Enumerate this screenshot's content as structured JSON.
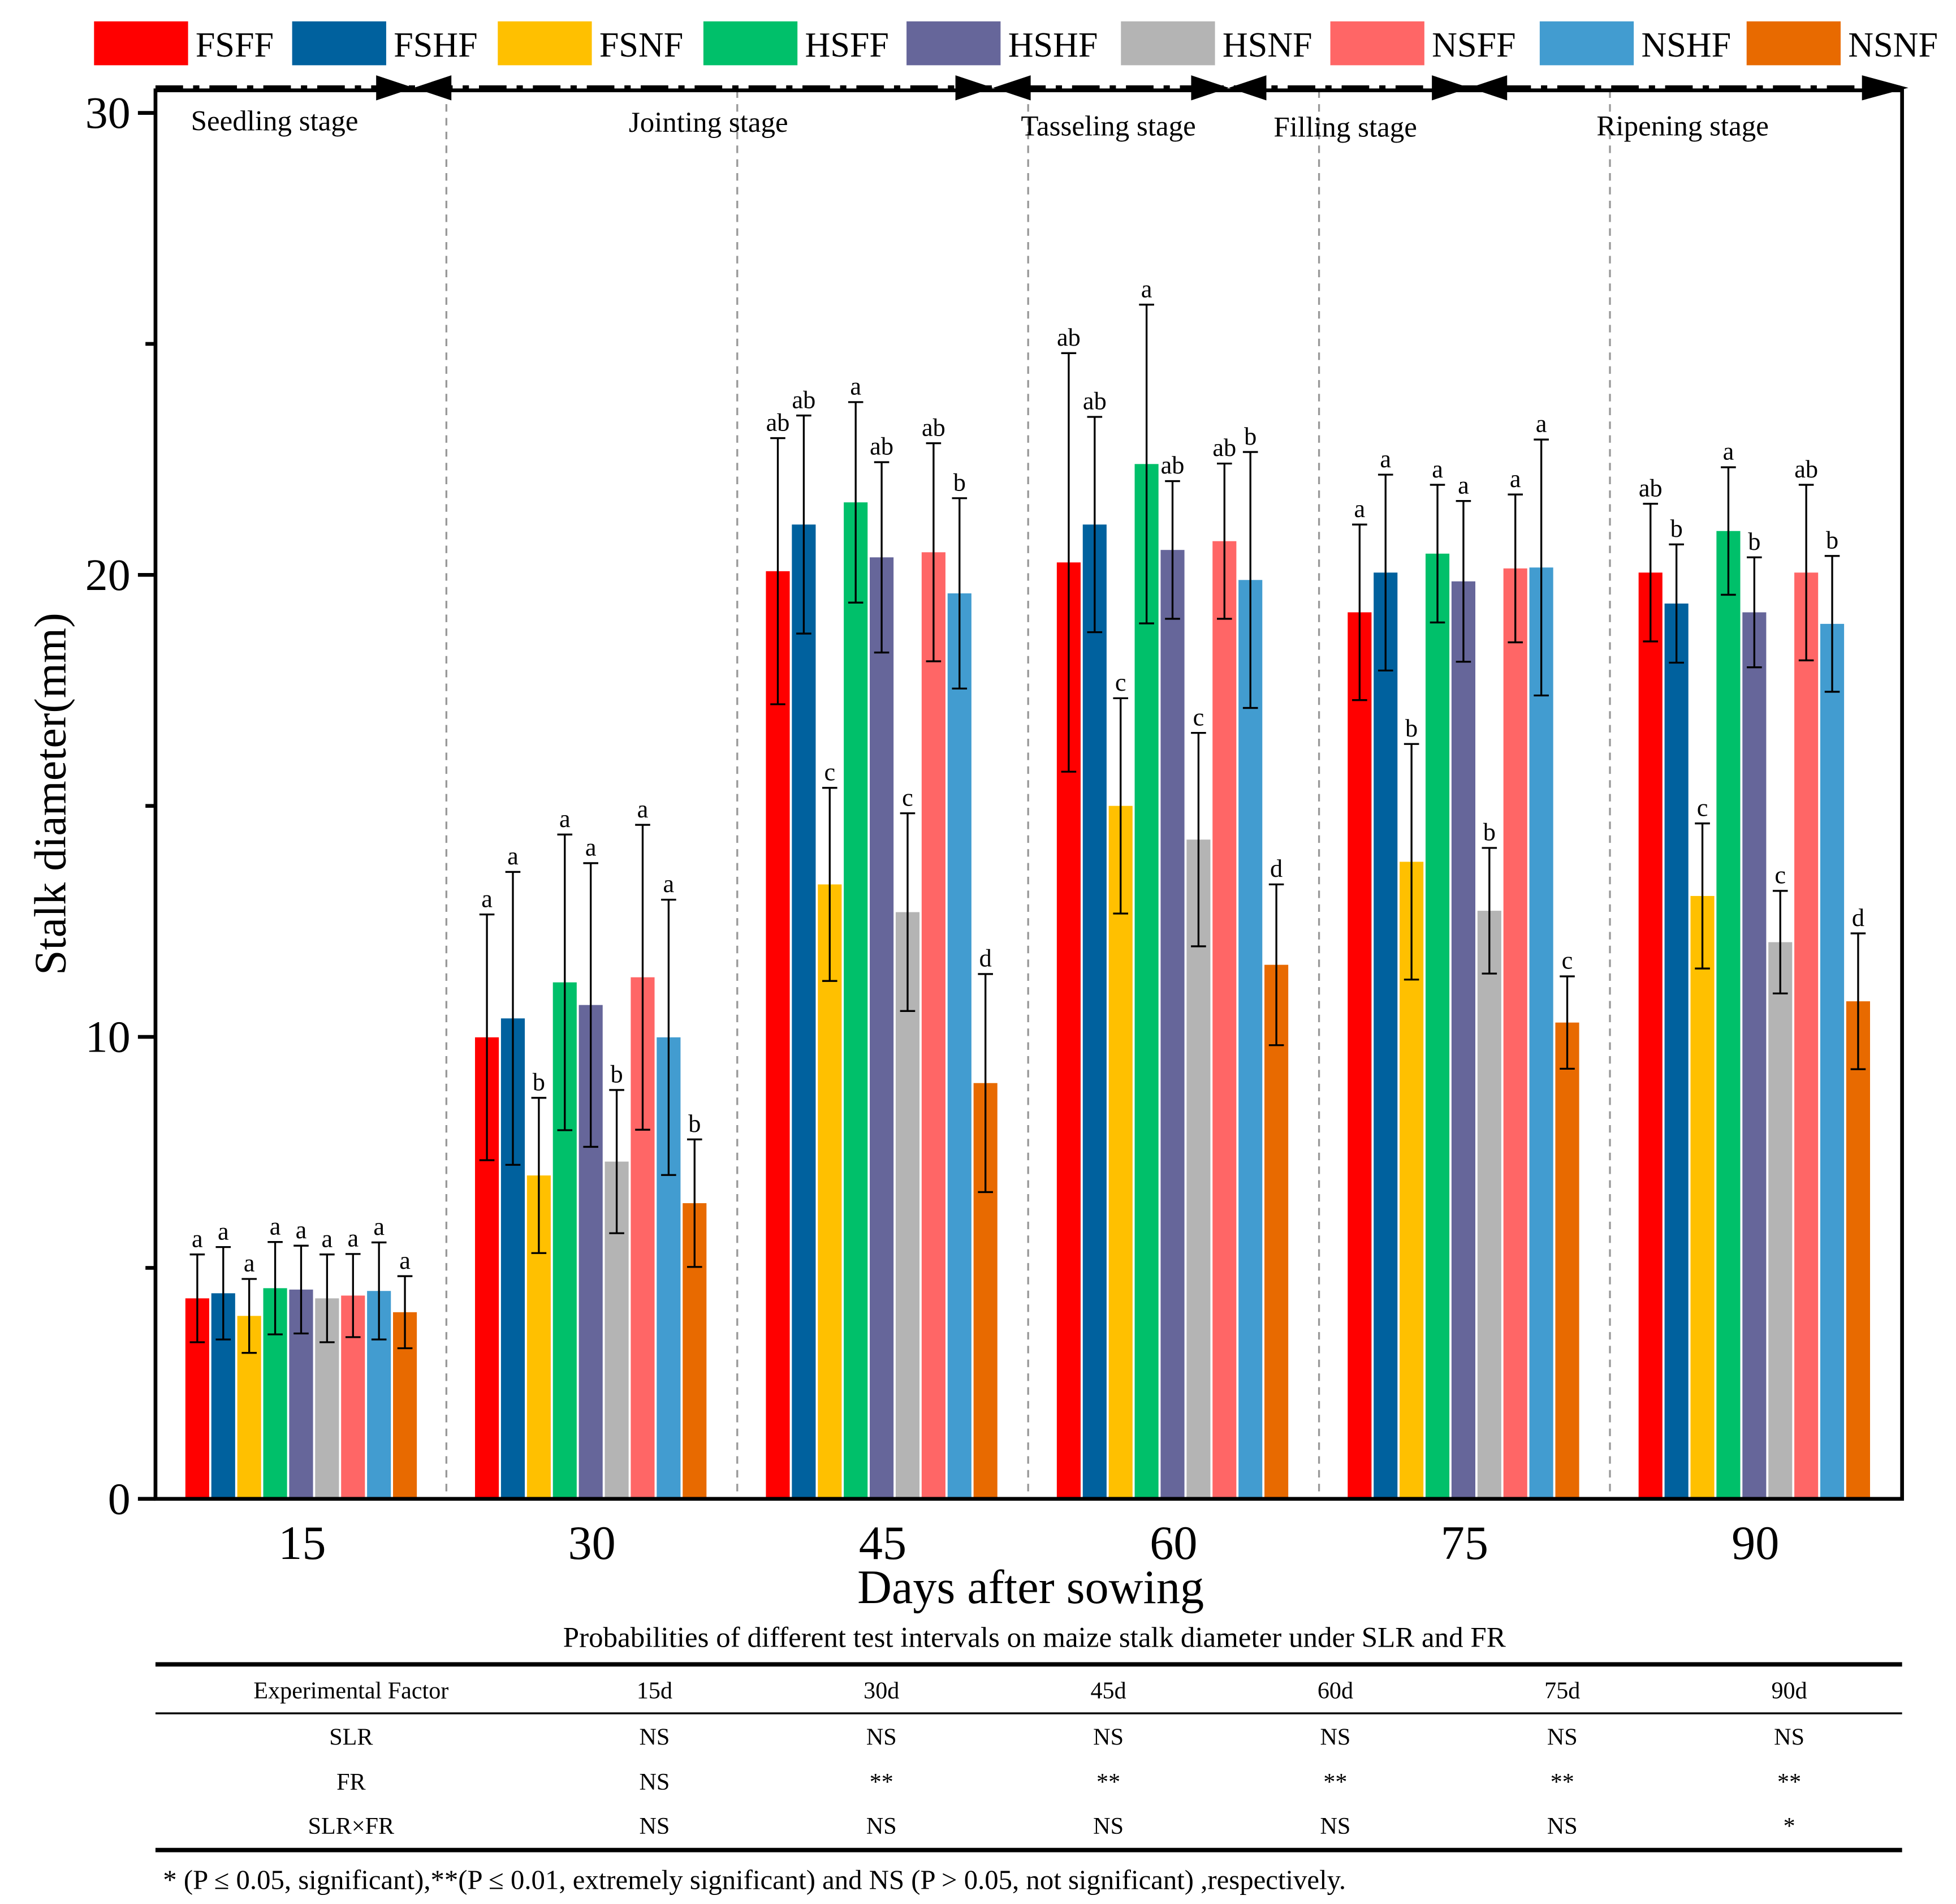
{
  "chart_data": {
    "type": "bar",
    "xlabel": "Days after sowing",
    "ylabel": "Stalk diameter(mm)",
    "ylim": [
      0,
      30
    ],
    "yticks": [
      0,
      10,
      20,
      30
    ],
    "categories": [
      "15",
      "30",
      "45",
      "60",
      "75",
      "90"
    ],
    "stages": [
      "Seedling stage",
      "Jointing stage",
      "Tasseling stage",
      "Filling stage",
      "Ripening stage"
    ],
    "legend_position": "top",
    "series": [
      {
        "name": "FSFF",
        "color": "#FF0000",
        "values": [
          4.34,
          9.99,
          20.08,
          20.27,
          19.19,
          20.05
        ],
        "errors": [
          0.95,
          2.66,
          2.88,
          4.53,
          1.9,
          1.49
        ],
        "letters": [
          "a",
          "a",
          "ab",
          "ab",
          "a",
          "ab"
        ]
      },
      {
        "name": "FSHF",
        "color": "#00619E",
        "values": [
          4.45,
          10.4,
          21.09,
          21.09,
          20.05,
          19.38
        ],
        "errors": [
          1.0,
          3.17,
          2.36,
          2.33,
          2.12,
          1.28
        ],
        "letters": [
          "a",
          "a",
          "ab",
          "ab",
          "a",
          "b"
        ]
      },
      {
        "name": "FSNF",
        "color": "#FFC000",
        "values": [
          3.96,
          7.0,
          13.3,
          15.0,
          13.79,
          13.05
        ],
        "errors": [
          0.8,
          1.68,
          2.09,
          2.33,
          2.55,
          1.57
        ],
        "letters": [
          "a",
          "b",
          "c",
          "c",
          "b",
          "c"
        ]
      },
      {
        "name": "HSFF",
        "color": "#00C06A",
        "values": [
          4.56,
          11.18,
          21.57,
          22.4,
          20.46,
          20.95
        ],
        "errors": [
          1.0,
          3.2,
          2.17,
          3.45,
          1.49,
          1.38
        ],
        "letters": [
          "a",
          "a",
          "a",
          "a",
          "a",
          "a"
        ]
      },
      {
        "name": "HSHF",
        "color": "#66669A",
        "values": [
          4.53,
          10.69,
          20.38,
          20.54,
          19.86,
          19.19
        ],
        "errors": [
          0.95,
          3.07,
          2.06,
          1.49,
          1.74,
          1.19
        ],
        "letters": [
          "a",
          "a",
          "ab",
          "ab",
          "a",
          "b"
        ]
      },
      {
        "name": "HSNF",
        "color": "#B4B4B4",
        "values": [
          4.34,
          7.3,
          12.7,
          14.27,
          12.73,
          12.05
        ],
        "errors": [
          0.95,
          1.55,
          2.14,
          2.31,
          1.36,
          1.11
        ],
        "letters": [
          "a",
          "b",
          "c",
          "c",
          "b",
          "c"
        ]
      },
      {
        "name": "NSFF",
        "color": "#FF6666",
        "values": [
          4.4,
          11.29,
          20.49,
          20.73,
          20.14,
          20.05
        ],
        "errors": [
          0.9,
          3.3,
          2.36,
          1.68,
          1.6,
          1.9
        ],
        "letters": [
          "a",
          "a",
          "ab",
          "ab",
          "a",
          "ab"
        ]
      },
      {
        "name": "NSHF",
        "color": "#429CD0",
        "values": [
          4.5,
          9.99,
          19.6,
          19.89,
          20.16,
          18.94
        ],
        "errors": [
          1.05,
          2.98,
          2.06,
          2.77,
          2.77,
          1.47
        ],
        "letters": [
          "a",
          "a",
          "b",
          "b",
          "a",
          "b"
        ]
      },
      {
        "name": "NSNF",
        "color": "#E86A00",
        "values": [
          4.04,
          6.4,
          9.0,
          11.56,
          10.31,
          10.77
        ],
        "errors": [
          0.78,
          1.38,
          2.36,
          1.74,
          1.0,
          1.47
        ],
        "letters": [
          "a",
          "b",
          "d",
          "d",
          "c",
          "d"
        ]
      }
    ]
  },
  "table": {
    "title": "Probabilities of  different test intervals on maize stalk diameter under SLR and FR",
    "headers": [
      "Experimental Factor",
      "15d",
      "30d",
      "45d",
      "60d",
      "75d",
      "90d"
    ],
    "rows": [
      [
        "SLR",
        "NS",
        "NS",
        "NS",
        "NS",
        "NS",
        "NS"
      ],
      [
        "FR",
        "NS",
        "**",
        "**",
        "**",
        "**",
        "**"
      ],
      [
        "SLR×FR",
        "NS",
        "NS",
        "NS",
        "NS",
        "NS",
        "*"
      ]
    ],
    "footnote": "* (P ≤ 0.05, significant),**(P ≤ 0.01, extremely significant) and NS (P > 0.05, not significant) ,respectively."
  }
}
